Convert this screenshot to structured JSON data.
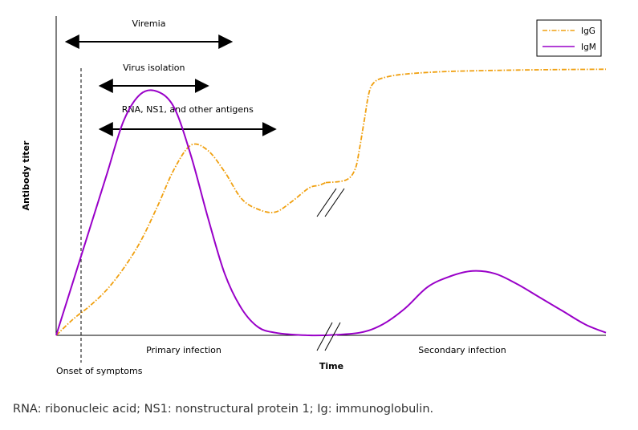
{
  "caption": "RNA: ribonucleic acid; NS1: nonstructural protein 1; Ig: immunoglobulin.",
  "colors": {
    "igg": "#f0a010",
    "igm": "#9900c8",
    "axis": "#000000",
    "legend_border": "#000000"
  },
  "chart_data": {
    "type": "line",
    "title": "",
    "xlabel": "Time",
    "ylabel": "Antibody titer",
    "xlim": [
      0,
      100
    ],
    "ylim": [
      0,
      100
    ],
    "legend": {
      "position": "top-right",
      "entries": [
        "IgG",
        "IgM"
      ]
    },
    "series": [
      {
        "name": "IgG",
        "style": "dash-dot",
        "segments": [
          {
            "x": [
              0,
              5,
              10,
              15,
              20,
              25,
              30,
              35,
              40,
              45,
              50,
              55,
              60,
              65,
              70,
              75,
              78,
              80
            ],
            "y": [
              0,
              6,
              11,
              17,
              25,
              35,
              48,
              62,
              71,
              69,
              61,
              51,
              47,
              46,
              50,
              55,
              56,
              57
            ]
          },
          {
            "x": [
              80,
              84,
              88,
              90,
              92,
              94,
              96,
              100,
              110,
              130,
              160,
              180,
              199
            ],
            "y": [
              57,
              58,
              62,
              70,
              80,
              90,
              94,
              96,
              97.5,
              98.5,
              99,
              99.2,
              99.3
            ]
          }
        ]
      },
      {
        "name": "IgM",
        "style": "solid",
        "segments": [
          {
            "x": [
              0,
              5,
              10,
              15,
              20,
              25,
              30,
              35,
              40,
              45,
              50,
              55,
              60,
              65,
              70,
              75,
              80
            ],
            "y": [
              0,
              20,
              40,
              60,
              80,
              90,
              91,
              85,
              67,
              44,
              23,
              10,
              3,
              1,
              0.3,
              0,
              0
            ]
          },
          {
            "x": [
              80,
              90,
              100,
              110,
              120,
              130,
              140,
              150,
              160,
              170,
              180,
              190,
              199
            ],
            "y": [
              0,
              1,
              4,
              10,
              18,
              22,
              24,
              23,
              19,
              14,
              9,
              4,
              1
            ]
          }
        ]
      }
    ],
    "arrows": [
      {
        "label": "Viremia",
        "x": [
          3,
          52
        ]
      },
      {
        "label": "Virus isolation",
        "x": [
          13,
          45
        ]
      },
      {
        "label": "RNA, NS1, and other antigens",
        "x": [
          13,
          65
        ]
      }
    ],
    "annotations": {
      "onset": "Onset of symptoms",
      "primary": "Primary infection",
      "secondary": "Secondary infection"
    }
  }
}
